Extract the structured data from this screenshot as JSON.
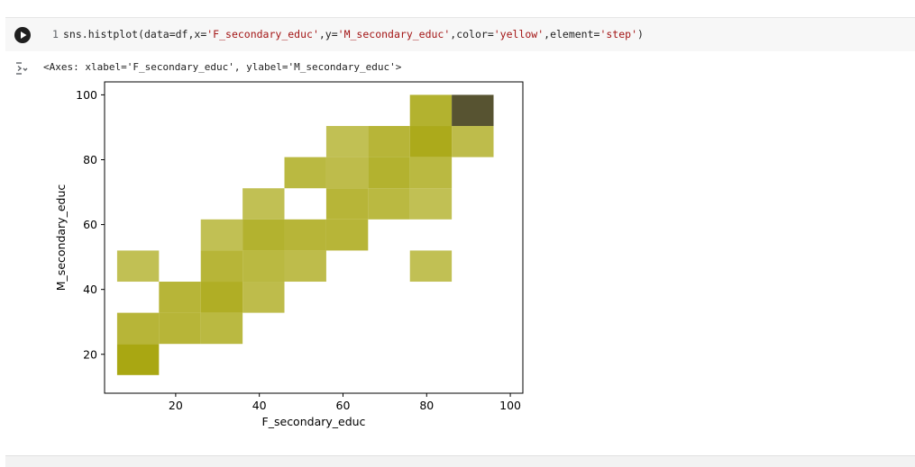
{
  "cell": {
    "line_number": "1",
    "code": {
      "prefix": "sns.histplot(data=df,x=",
      "x_arg": "'F_secondary_educ'",
      "mid1": ",y=",
      "y_arg": "'M_secondary_educ'",
      "mid2": ",color=",
      "color_arg": "'yellow'",
      "mid3": ",element=",
      "element_arg": "'step'",
      "suffix": ")"
    },
    "output_repr": "<Axes: xlabel='F_secondary_educ', ylabel='M_secondary_educ'>"
  },
  "icons": {
    "run": "play-icon",
    "output_toggle": "output-toggle-icon"
  },
  "colors": {
    "bin_base": "#a9a712",
    "axis": "#000000"
  },
  "chart_data": {
    "type": "heatmap",
    "title": "",
    "xlabel": "F_secondary_educ",
    "ylabel": "M_secondary_educ",
    "xlim": [
      3,
      103
    ],
    "ylim": [
      8,
      104
    ],
    "xticks": [
      20,
      40,
      60,
      80,
      100
    ],
    "yticks": [
      20,
      40,
      60,
      80,
      100
    ],
    "bin_width": 10,
    "bin_height": 9.6,
    "bins": [
      {
        "x": 6,
        "y": 13.6,
        "count": 10
      },
      {
        "x": 6,
        "y": 23.2,
        "count": 6
      },
      {
        "x": 16,
        "y": 23.2,
        "count": 6
      },
      {
        "x": 26,
        "y": 23.2,
        "count": 5
      },
      {
        "x": 16,
        "y": 32.8,
        "count": 6
      },
      {
        "x": 26,
        "y": 32.8,
        "count": 8
      },
      {
        "x": 36,
        "y": 32.8,
        "count": 4
      },
      {
        "x": 6,
        "y": 42.4,
        "count": 3
      },
      {
        "x": 26,
        "y": 42.4,
        "count": 6
      },
      {
        "x": 36,
        "y": 42.4,
        "count": 5
      },
      {
        "x": 46,
        "y": 42.4,
        "count": 4
      },
      {
        "x": 76,
        "y": 42.4,
        "count": 3
      },
      {
        "x": 26,
        "y": 52,
        "count": 3
      },
      {
        "x": 36,
        "y": 52,
        "count": 7
      },
      {
        "x": 46,
        "y": 52,
        "count": 6
      },
      {
        "x": 56,
        "y": 52,
        "count": 6
      },
      {
        "x": 36,
        "y": 61.6,
        "count": 3
      },
      {
        "x": 56,
        "y": 61.6,
        "count": 6
      },
      {
        "x": 66,
        "y": 61.6,
        "count": 5
      },
      {
        "x": 76,
        "y": 61.6,
        "count": 3
      },
      {
        "x": 46,
        "y": 71.2,
        "count": 5
      },
      {
        "x": 56,
        "y": 71.2,
        "count": 4
      },
      {
        "x": 66,
        "y": 71.2,
        "count": 7
      },
      {
        "x": 76,
        "y": 71.2,
        "count": 5
      },
      {
        "x": 56,
        "y": 80.8,
        "count": 3
      },
      {
        "x": 66,
        "y": 80.8,
        "count": 6
      },
      {
        "x": 76,
        "y": 80.8,
        "count": 9
      },
      {
        "x": 86,
        "y": 80.8,
        "count": 4
      },
      {
        "x": 76,
        "y": 90.4,
        "count": 7
      },
      {
        "x": 86,
        "y": 90.4,
        "count": 20
      }
    ]
  }
}
